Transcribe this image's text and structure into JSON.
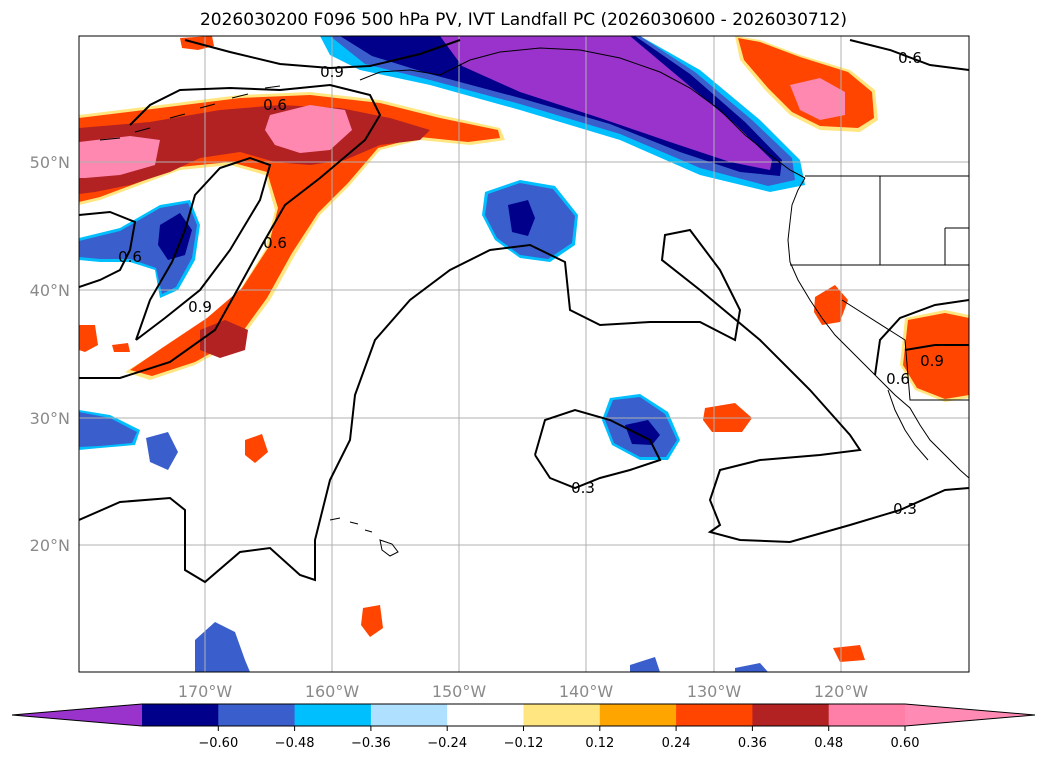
{
  "title": "2026030200 F096 500 hPa PV, IVT Landfall PC (2026030600 - 2026030712)",
  "map": {
    "lat_labels": [
      "50°N",
      "40°N",
      "30°N",
      "20°N"
    ],
    "lon_labels": [
      "170°W",
      "160°W",
      "150°W",
      "140°W",
      "130°W",
      "120°W"
    ],
    "contour_labels": [
      "0.9",
      "0.6",
      "0.6",
      "0.6",
      "0.9",
      "0.6",
      "0.9",
      "0.6",
      "0.3",
      "0.3"
    ]
  },
  "colorbar": {
    "ticks": [
      "−0.60",
      "−0.48",
      "−0.36",
      "−0.24",
      "−0.12",
      "0.12",
      "0.24",
      "0.36",
      "0.48",
      "0.60"
    ],
    "colors": [
      "#9933cc",
      "#00008b",
      "#3a5fcd",
      "#00bfff",
      "#b0e0ff",
      "#ffffff",
      "#ffe680",
      "#ffa500",
      "#ff4500",
      "#b22222",
      "#ff7fa8",
      "#ff8ab4"
    ]
  },
  "palette": {
    "purple": "#9933cc",
    "navy": "#00008b",
    "blue": "#3a5fcd",
    "cyan": "#00bfff",
    "pink": "#ff88b0",
    "firebrick": "#b22222",
    "orangered": "#ff4500",
    "yellow": "#ffe680"
  }
}
